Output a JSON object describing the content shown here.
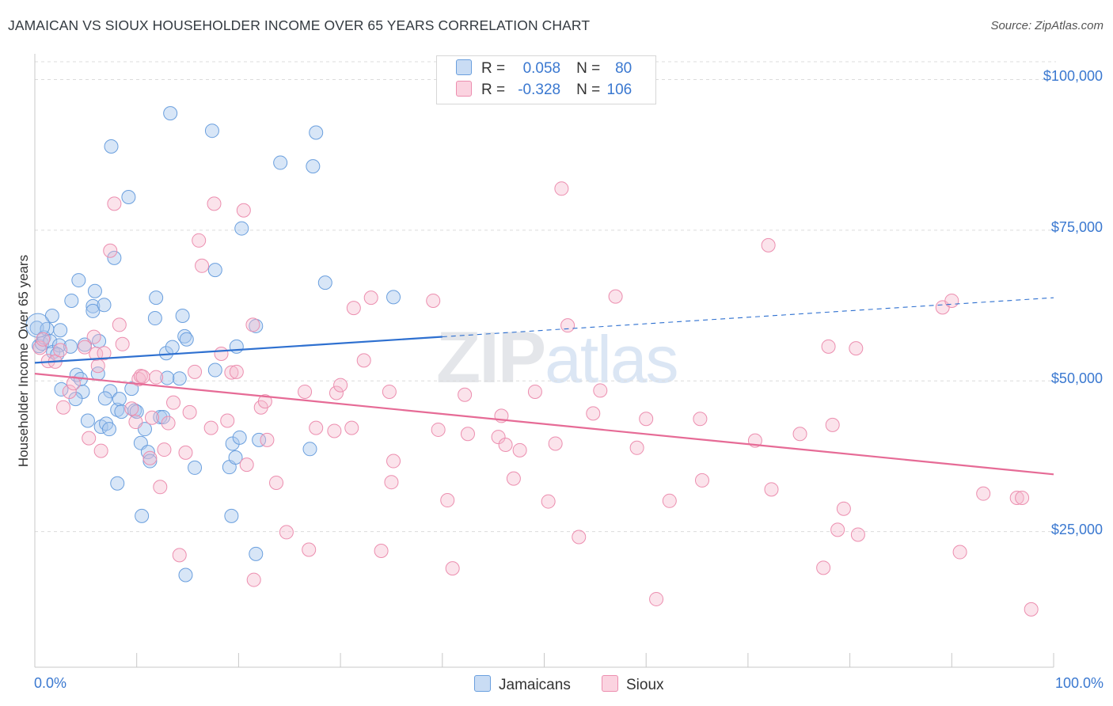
{
  "title": "JAMAICAN VS SIOUX HOUSEHOLDER INCOME OVER 65 YEARS CORRELATION CHART",
  "source": "Source: ZipAtlas.com",
  "watermark": {
    "zip": "ZIP",
    "atlas": "atlas"
  },
  "legend": {
    "rows": [
      {
        "r_label": "R =",
        "r_value": "0.058",
        "n_label": "N =",
        "n_value": "80",
        "color": "#a9c8ee"
      },
      {
        "r_label": "R =",
        "r_value": "-0.328",
        "n_label": "N =",
        "n_value": "106",
        "color": "#f6b8cc"
      }
    ]
  },
  "bottom_legend": [
    {
      "label": "Jamaicans",
      "color": "#a9c8ee"
    },
    {
      "label": "Sioux",
      "color": "#f6b8cc"
    }
  ],
  "colors": {
    "jamaican_fill": "#a9c8ee",
    "jamaican_stroke": "#6a9fde",
    "jamaican_line": "#2e70d0",
    "sioux_fill": "#f6b8cc",
    "sioux_stroke": "#ec8eaf",
    "sioux_line": "#e66b96",
    "tick_text": "#3a78d0",
    "grid": "#dcdcdc"
  },
  "chart_data": {
    "type": "scatter",
    "xlabel": "",
    "ylabel": "Householder Income Over 65 years",
    "x_tick_labels": [
      "0.0%",
      "100.0%"
    ],
    "y_tick_labels": [
      "$25,000",
      "$50,000",
      "$75,000",
      "$100,000"
    ],
    "xlim": [
      0,
      100
    ],
    "ylim": [
      2500,
      104000
    ],
    "y_ticks": [
      25000,
      50000,
      75000,
      100000
    ],
    "grid": "horizontal dashed",
    "legend_position": "top-center",
    "series": [
      {
        "name": "Jamaicans",
        "r": 0.058,
        "n": 80,
        "trend": {
          "x0": 0,
          "y0": 53000,
          "x1": 100,
          "y1": 63800,
          "solid_until": 40
        },
        "points": [
          [
            0.2,
            58800
          ],
          [
            0.4,
            55800
          ],
          [
            0.7,
            56200
          ],
          [
            0.9,
            57200
          ],
          [
            1.2,
            58600
          ],
          [
            1.5,
            56600
          ],
          [
            1.7,
            60800
          ],
          [
            1.8,
            54800
          ],
          [
            2.4,
            55900
          ],
          [
            2.5,
            58400
          ],
          [
            2.6,
            48600
          ],
          [
            3.6,
            63300
          ],
          [
            3.5,
            55700
          ],
          [
            4.3,
            66700
          ],
          [
            4.1,
            51000
          ],
          [
            4.5,
            50300
          ],
          [
            4.7,
            48200
          ],
          [
            4.9,
            56000
          ],
          [
            5.2,
            43400
          ],
          [
            5.7,
            62400
          ],
          [
            5.7,
            61600
          ],
          [
            5.9,
            64900
          ],
          [
            6.2,
            51200
          ],
          [
            6.3,
            56600
          ],
          [
            6.5,
            42400
          ],
          [
            6.8,
            62600
          ],
          [
            7.0,
            42900
          ],
          [
            7.3,
            42000
          ],
          [
            7.4,
            48300
          ],
          [
            7.5,
            88900
          ],
          [
            7.8,
            70400
          ],
          [
            8.1,
            33000
          ],
          [
            8.1,
            45200
          ],
          [
            8.3,
            47000
          ],
          [
            8.5,
            44900
          ],
          [
            9.2,
            80500
          ],
          [
            9.5,
            48700
          ],
          [
            9.8,
            45100
          ],
          [
            10.0,
            44900
          ],
          [
            10.4,
            39700
          ],
          [
            10.5,
            27600
          ],
          [
            10.8,
            42000
          ],
          [
            11.1,
            38200
          ],
          [
            11.3,
            36700
          ],
          [
            11.8,
            60400
          ],
          [
            11.9,
            63800
          ],
          [
            12.3,
            44000
          ],
          [
            12.6,
            44000
          ],
          [
            12.9,
            54600
          ],
          [
            13.3,
            94400
          ],
          [
            13.5,
            55600
          ],
          [
            14.2,
            50400
          ],
          [
            14.5,
            60800
          ],
          [
            14.7,
            57400
          ],
          [
            14.8,
            17800
          ],
          [
            14.9,
            56900
          ],
          [
            15.7,
            35600
          ],
          [
            17.4,
            91500
          ],
          [
            17.7,
            68400
          ],
          [
            17.7,
            51800
          ],
          [
            19.1,
            35700
          ],
          [
            19.3,
            27600
          ],
          [
            19.4,
            39600
          ],
          [
            19.7,
            37300
          ],
          [
            19.8,
            55700
          ],
          [
            20.1,
            40600
          ],
          [
            20.3,
            75300
          ],
          [
            21.7,
            59100
          ],
          [
            21.7,
            21300
          ],
          [
            22.0,
            40200
          ],
          [
            24.1,
            86200
          ],
          [
            27.0,
            38700
          ],
          [
            27.3,
            85600
          ],
          [
            27.6,
            91200
          ],
          [
            28.5,
            66300
          ],
          [
            35.2,
            63900
          ],
          [
            4.0,
            47000
          ],
          [
            2.2,
            54400
          ],
          [
            6.9,
            47100
          ],
          [
            13.0,
            50500
          ]
        ]
      },
      {
        "name": "Sioux",
        "r": -0.328,
        "n": 106,
        "trend": {
          "x0": 0,
          "y0": 51200,
          "x1": 100,
          "y1": 34500
        },
        "points": [
          [
            0.5,
            55500
          ],
          [
            0.8,
            56900
          ],
          [
            1.3,
            53300
          ],
          [
            2.0,
            53200
          ],
          [
            2.5,
            55100
          ],
          [
            2.8,
            45600
          ],
          [
            3.4,
            48200
          ],
          [
            3.8,
            49600
          ],
          [
            4.9,
            55600
          ],
          [
            5.3,
            40500
          ],
          [
            5.8,
            57300
          ],
          [
            6.0,
            54500
          ],
          [
            6.2,
            52500
          ],
          [
            6.5,
            38400
          ],
          [
            6.8,
            54600
          ],
          [
            7.4,
            71600
          ],
          [
            7.8,
            79400
          ],
          [
            8.3,
            59300
          ],
          [
            8.6,
            56100
          ],
          [
            9.5,
            45400
          ],
          [
            9.9,
            43200
          ],
          [
            10.2,
            50300
          ],
          [
            10.4,
            50800
          ],
          [
            10.6,
            50700
          ],
          [
            11.3,
            37200
          ],
          [
            11.5,
            43900
          ],
          [
            11.9,
            50600
          ],
          [
            12.3,
            32400
          ],
          [
            12.7,
            38600
          ],
          [
            13.1,
            43000
          ],
          [
            13.6,
            46400
          ],
          [
            14.2,
            21100
          ],
          [
            14.8,
            38100
          ],
          [
            15.2,
            44800
          ],
          [
            15.7,
            51500
          ],
          [
            16.1,
            73300
          ],
          [
            16.4,
            69100
          ],
          [
            17.3,
            42200
          ],
          [
            17.6,
            79400
          ],
          [
            18.3,
            54500
          ],
          [
            18.9,
            43400
          ],
          [
            19.3,
            51400
          ],
          [
            19.8,
            51500
          ],
          [
            20.5,
            78300
          ],
          [
            20.8,
            36100
          ],
          [
            21.4,
            59300
          ],
          [
            21.5,
            17000
          ],
          [
            22.2,
            45600
          ],
          [
            22.6,
            46600
          ],
          [
            22.8,
            40200
          ],
          [
            23.7,
            33100
          ],
          [
            24.7,
            24900
          ],
          [
            26.5,
            48200
          ],
          [
            26.9,
            22000
          ],
          [
            27.6,
            42200
          ],
          [
            29.4,
            41700
          ],
          [
            29.6,
            48000
          ],
          [
            30.0,
            49300
          ],
          [
            31.1,
            42200
          ],
          [
            31.3,
            62100
          ],
          [
            32.3,
            53400
          ],
          [
            33.0,
            63800
          ],
          [
            34.0,
            21800
          ],
          [
            34.8,
            48200
          ],
          [
            35.0,
            33200
          ],
          [
            35.2,
            36700
          ],
          [
            39.1,
            63300
          ],
          [
            39.6,
            41900
          ],
          [
            40.5,
            30200
          ],
          [
            41.0,
            18900
          ],
          [
            42.2,
            47700
          ],
          [
            42.5,
            41200
          ],
          [
            45.5,
            40700
          ],
          [
            45.8,
            44200
          ],
          [
            46.2,
            39400
          ],
          [
            47.0,
            33800
          ],
          [
            47.6,
            38500
          ],
          [
            49.1,
            48200
          ],
          [
            50.4,
            30000
          ],
          [
            51.1,
            39600
          ],
          [
            51.7,
            81900
          ],
          [
            52.3,
            59200
          ],
          [
            53.4,
            24100
          ],
          [
            54.8,
            44600
          ],
          [
            55.5,
            48400
          ],
          [
            57.0,
            64000
          ],
          [
            59.1,
            38900
          ],
          [
            60.0,
            43700
          ],
          [
            61.0,
            13800
          ],
          [
            62.3,
            30100
          ],
          [
            65.3,
            43700
          ],
          [
            65.5,
            33500
          ],
          [
            70.7,
            40100
          ],
          [
            72.0,
            72500
          ],
          [
            72.3,
            32000
          ],
          [
            75.1,
            41200
          ],
          [
            77.4,
            19000
          ],
          [
            77.9,
            55700
          ],
          [
            78.3,
            42700
          ],
          [
            78.8,
            25300
          ],
          [
            79.4,
            28800
          ],
          [
            80.6,
            55400
          ],
          [
            80.8,
            24500
          ],
          [
            89.1,
            62200
          ],
          [
            90.0,
            63300
          ],
          [
            90.8,
            21600
          ]
        ]
      },
      {
        "name": "Sioux (right edge)",
        "points": [
          [
            93.1,
            31300
          ],
          [
            96.4,
            30600
          ],
          [
            96.9,
            30600
          ],
          [
            97.8,
            12100
          ]
        ]
      }
    ]
  }
}
